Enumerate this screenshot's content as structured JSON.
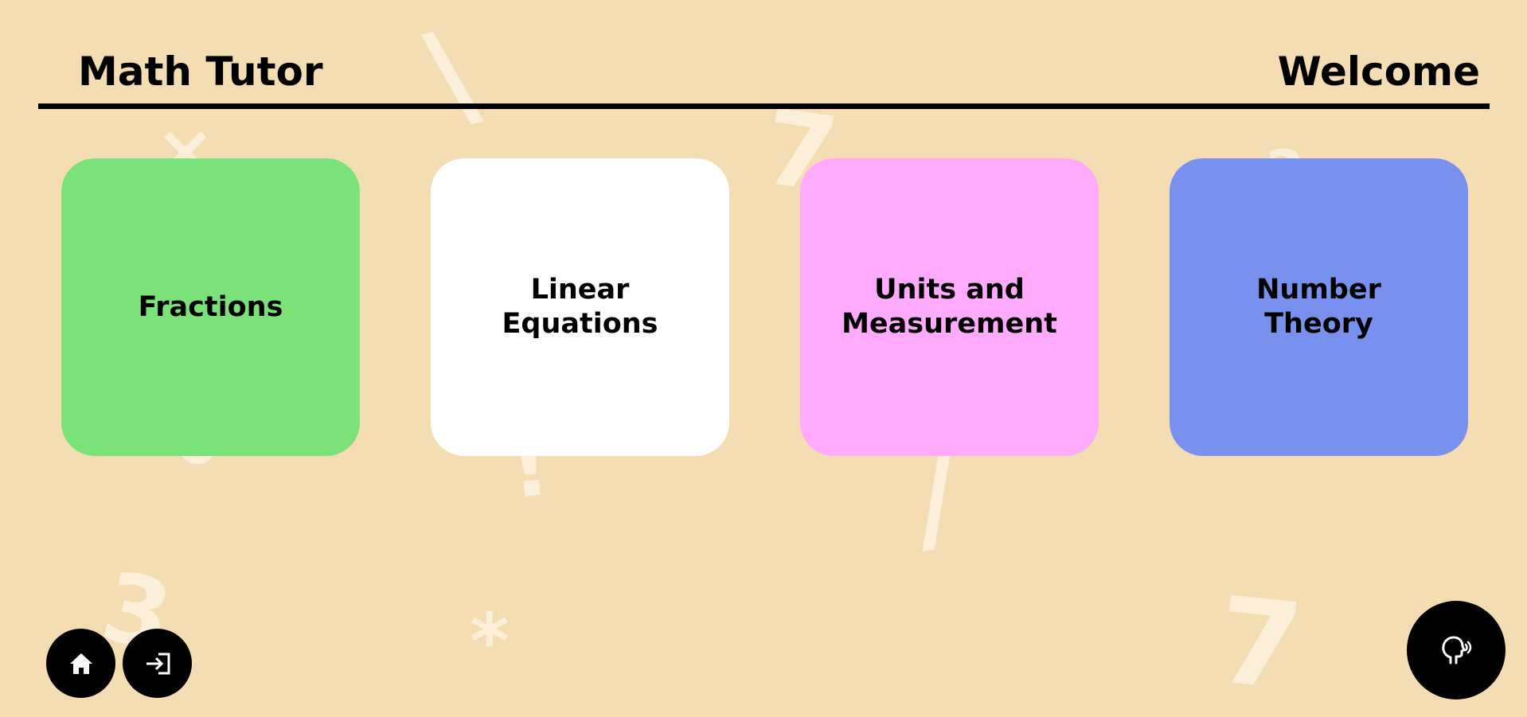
{
  "header": {
    "app_title": "Math Tutor",
    "welcome_text": "Welcome"
  },
  "topics": [
    {
      "label": "Fractions",
      "color": "#7be27a"
    },
    {
      "label": "Linear Equations",
      "color": "#ffffff"
    },
    {
      "label": "Units and Measurement",
      "color": "#ffaafd"
    },
    {
      "label": "Number Theory",
      "color": "#7891ee"
    }
  ],
  "background_glyphs": [
    "\\",
    "×",
    "7",
    "2",
    "!",
    "/",
    "0",
    "3",
    "*",
    "7"
  ],
  "buttons": {
    "home_icon": "home-icon",
    "login_icon": "sign-in-icon",
    "speak_icon": "speaking-head-icon"
  },
  "colors": {
    "background": "#f4ddb3",
    "glyph": "#fbefd9",
    "button": "#000000"
  }
}
